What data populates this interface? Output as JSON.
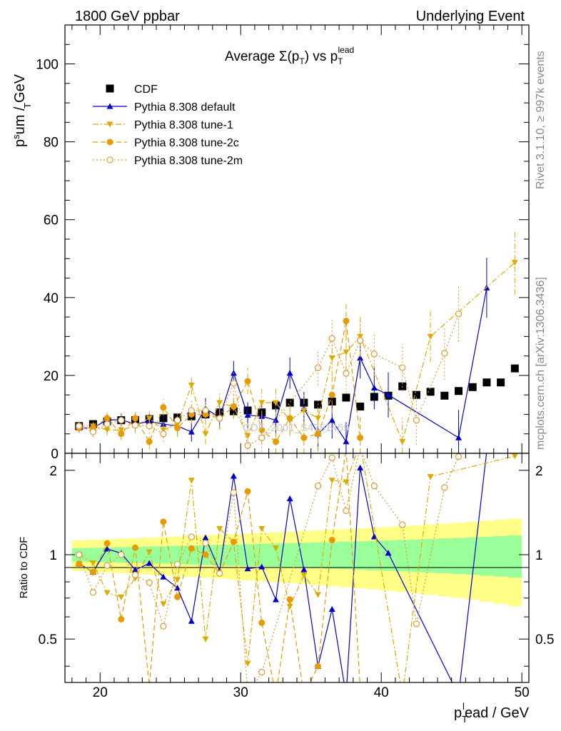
{
  "header": {
    "left": "1800 GeV ppbar",
    "right": "Underlying Event"
  },
  "side": {
    "rivet": "Rivet 3.1.10, ≥ 997k events",
    "mcplots": "mcplots.cern.ch [arXiv:1306.3436]"
  },
  "watermark": "CDF_2001_S4751469",
  "chart_data": {
    "type": "scatter",
    "title": "Average Σ(pT) vs pT lead",
    "xlabel": "pT lead / GeV",
    "ylabel": "pT sum / GeV",
    "ratio_ylabel": "Ratio to CDF",
    "xlim": [
      17.5,
      50.5
    ],
    "ylim": [
      0,
      110
    ],
    "ratio_ylim": [
      0.35,
      2.3
    ],
    "ratio_scale": "log",
    "x_ticks": [
      20,
      30,
      40,
      50
    ],
    "y_ticks": [
      0,
      20,
      40,
      60,
      80,
      100
    ],
    "ratio_ticks": [
      0.5,
      1,
      2
    ],
    "grid": false,
    "legend_position": "top-left",
    "x": [
      18.5,
      19.5,
      20.5,
      21.5,
      22.5,
      23.5,
      24.5,
      25.5,
      26.5,
      27.5,
      28.5,
      29.5,
      30.5,
      31.5,
      32.5,
      33.5,
      34.5,
      35.5,
      36.5,
      37.5,
      38.5,
      39.5,
      40.5,
      41.5,
      42.5,
      43.5,
      44.5,
      45.5,
      46.5,
      47.5,
      48.5,
      49.5
    ],
    "series": [
      {
        "name": "CDF",
        "color": "#000000",
        "marker": "square",
        "values": [
          7.0,
          7.5,
          8.2,
          8.5,
          8.5,
          8.8,
          9.0,
          9.2,
          9.5,
          10.0,
          10.5,
          10.8,
          11.0,
          10.5,
          12.3,
          13.0,
          13.0,
          12.5,
          13.3,
          14.3,
          12.0,
          14.5,
          14.8,
          17.2,
          15.0,
          15.8,
          14.8,
          16.0,
          17.0,
          18.2,
          18.2,
          21.8
        ]
      },
      {
        "name": "Pythia 8.308 default",
        "color": "#0000cc",
        "marker": "triangle-up",
        "dash": "solid",
        "values": [
          6.5,
          6.5,
          8.6,
          8.6,
          7.5,
          8.2,
          7.5,
          7.0,
          5.5,
          11.5,
          9.2,
          20.6,
          9.8,
          9.5,
          8.5,
          20.6,
          11.5,
          5.0,
          8.5,
          3.0,
          24.5,
          16.8,
          15.0,
          null,
          null,
          null,
          null,
          4.0,
          null,
          42.5,
          null,
          null
        ]
      },
      {
        "name": "Pythia 8.308 tune-1",
        "color": "#ddaa00",
        "marker": "triangle-down",
        "dash": "dashdot",
        "values": [
          7.0,
          7.0,
          6.0,
          6.0,
          7.0,
          9.0,
          6.0,
          7.5,
          17.5,
          5.0,
          13.0,
          12.0,
          4.5,
          13.0,
          13.0,
          8.5,
          11.0,
          9.0,
          24.5,
          26.0,
          30.0,
          null,
          null,
          3.0,
          null,
          30.0,
          null,
          null,
          null,
          null,
          null,
          49.0
        ]
      },
      {
        "name": "Pythia 8.308 tune-2c",
        "color": "#e69b00",
        "marker": "circle",
        "dash": "dashed",
        "values": [
          6.5,
          6.5,
          9.0,
          5.0,
          9.0,
          3.0,
          11.8,
          6.5,
          10.0,
          10.0,
          9.0,
          12.0,
          18.5,
          6.0,
          3.0,
          9.0,
          4.0,
          5.0,
          15.0,
          34.0,
          4.0,
          null,
          null,
          null,
          null,
          null,
          null,
          null,
          null,
          null,
          null,
          null
        ]
      },
      {
        "name": "Pythia 8.308 tune-2m",
        "color": "#dd9933",
        "marker": "open-circle",
        "dash": "dotted",
        "values": [
          7.0,
          5.5,
          7.5,
          8.5,
          7.2,
          7.0,
          5.0,
          8.5,
          11.0,
          11.0,
          9.0,
          18.0,
          2.0,
          4.0,
          null,
          null,
          null,
          22.0,
          29.5,
          20.5,
          29.0,
          25.5,
          null,
          22.0,
          8.5,
          null,
          25.7,
          35.8,
          null,
          null,
          null,
          null
        ]
      }
    ],
    "uncertainty_bands": {
      "stat_color": "#99ff99",
      "total_color": "#ffff88"
    }
  }
}
